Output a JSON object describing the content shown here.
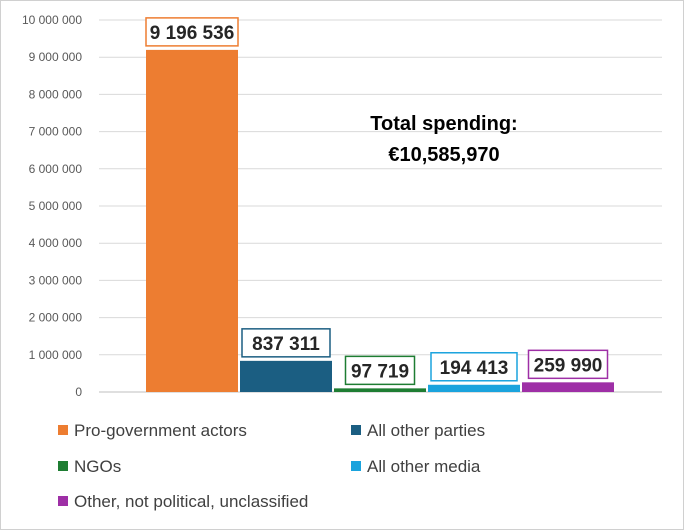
{
  "chart_data": {
    "type": "bar",
    "title": "",
    "xlabel": "",
    "ylabel": "",
    "ylim": [
      0,
      10000000
    ],
    "yticks": [
      0,
      1000000,
      2000000,
      3000000,
      4000000,
      5000000,
      6000000,
      7000000,
      8000000,
      9000000,
      10000000
    ],
    "ytick_labels": [
      "0",
      "1 000 000",
      "2 000 000",
      "3 000 000",
      "4 000 000",
      "5 000 000",
      "6 000 000",
      "7 000 000",
      "8 000 000",
      "9 000 000",
      "10 000 000"
    ],
    "grid": true,
    "categories": [
      "Pro-government actors",
      "All other parties",
      "NGOs",
      "All other media",
      "Other, not political, unclassified"
    ],
    "values": [
      9196536,
      837311,
      97719,
      194413,
      259990
    ],
    "value_labels": [
      "9 196 536",
      "837 311",
      "97 719",
      "194 413",
      "259 990"
    ],
    "colors": [
      "#ED7D31",
      "#1B5E82",
      "#1E7D32",
      "#1AA3DD",
      "#9E2FA6"
    ],
    "annotation": [
      "Total spending:",
      "€10,585,970"
    ],
    "legend_position": "bottom"
  }
}
